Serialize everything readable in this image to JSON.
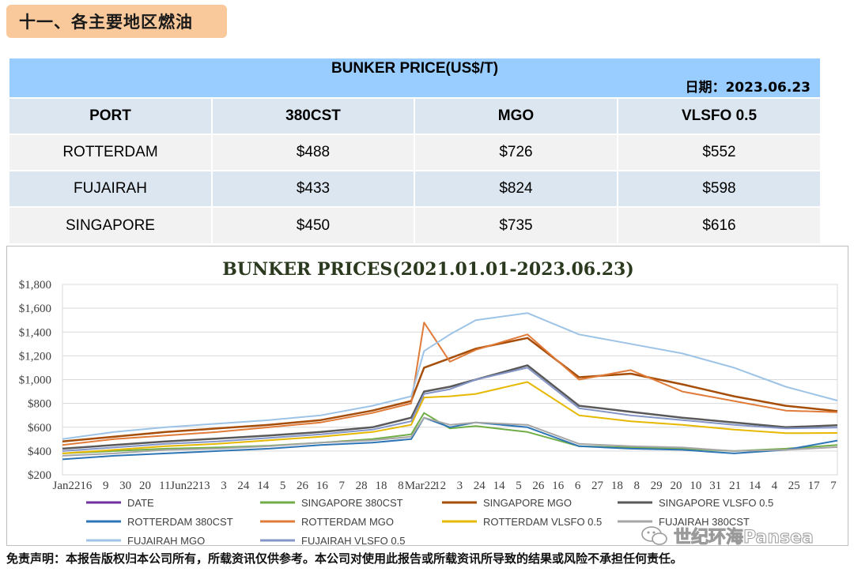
{
  "section_title": "十一、各主要地区燃油",
  "table": {
    "title": "BUNKER PRICE(US$/T)",
    "date": "日期：2023.06.23",
    "headers": [
      "PORT",
      "380CST",
      "MGO",
      "VLSFO 0.5"
    ],
    "rows": [
      [
        "ROTTERDAM",
        "$488",
        "$726",
        "$552"
      ],
      [
        "FUJAIRAH",
        "$433",
        "$824",
        "$598"
      ],
      [
        "SINGAPORE",
        "$450",
        "$735",
        "$616"
      ]
    ]
  },
  "chart_data": {
    "type": "line",
    "title": "BUNKER PRICES(2021.01.01-2023.06.23)",
    "xlabel": "",
    "ylabel": "",
    "ylim": [
      200,
      1800
    ],
    "yticks": [
      "$200",
      "$400",
      "$600",
      "$800",
      "$1,000",
      "$1,200",
      "$1,400",
      "$1,600",
      "$1,800"
    ],
    "xtick_labels": [
      "Jan22",
      "16",
      "9",
      "30",
      "20",
      "11",
      "Jun22",
      "13",
      "3",
      "24",
      "14",
      "5",
      "26",
      "16",
      "7",
      "28",
      "18",
      "8",
      "Mar22",
      "12",
      "3",
      "24",
      "14",
      "5",
      "26",
      "16",
      "6",
      "27",
      "18",
      "8",
      "29",
      "20",
      "10",
      "31",
      "21",
      "14",
      "4",
      "25",
      "17",
      "7"
    ],
    "grid": true,
    "legend_position": "bottom",
    "legend": [
      "DATE",
      "SINGAPORE 380CST",
      "SINGAPORE MGO",
      "SINGAPORE VLSFO 0.5",
      "ROTTERDAM 380CST",
      "ROTTERDAM MGO",
      "ROTTERDAM VLSFO 0.5",
      "FUJAIRAH 380CST",
      "FUJAIRAH MGO",
      "FUJAIRAH VLSFO 0.5"
    ],
    "x_index": [
      0,
      8,
      16,
      24,
      32,
      40,
      48,
      54,
      56,
      60,
      64,
      72,
      80,
      88,
      96,
      104,
      112,
      120
    ],
    "series": [
      {
        "name": "SINGAPORE 380CST",
        "color": "#70ad47",
        "width": 2,
        "values": [
          380,
          400,
          420,
          430,
          445,
          470,
          500,
          540,
          720,
          590,
          610,
          560,
          440,
          430,
          420,
          400,
          420,
          450
        ]
      },
      {
        "name": "SINGAPORE MGO",
        "color": "#a64d08",
        "width": 2.5,
        "values": [
          480,
          520,
          560,
          590,
          620,
          660,
          740,
          820,
          1100,
          1180,
          1260,
          1350,
          1020,
          1050,
          960,
          860,
          780,
          735
        ]
      },
      {
        "name": "SINGAPORE VLSFO 0.5",
        "color": "#595959",
        "width": 2.5,
        "values": [
          420,
          450,
          480,
          505,
          530,
          560,
          600,
          680,
          900,
          940,
          1000,
          1120,
          780,
          730,
          680,
          640,
          600,
          616
        ]
      },
      {
        "name": "ROTTERDAM 380CST",
        "color": "#2e75b6",
        "width": 2,
        "values": [
          330,
          360,
          380,
          400,
          420,
          450,
          470,
          500,
          680,
          600,
          640,
          600,
          440,
          420,
          410,
          380,
          410,
          488
        ]
      },
      {
        "name": "ROTTERDAM MGO",
        "color": "#e07b39",
        "width": 2,
        "values": [
          450,
          500,
          530,
          560,
          600,
          640,
          720,
          800,
          1480,
          1150,
          1250,
          1380,
          1000,
          1080,
          900,
          820,
          740,
          726
        ]
      },
      {
        "name": "ROTTERDAM VLSFO 0.5",
        "color": "#e6b800",
        "width": 2,
        "values": [
          380,
          410,
          440,
          460,
          490,
          520,
          560,
          620,
          850,
          860,
          880,
          980,
          700,
          650,
          620,
          580,
          550,
          552
        ]
      },
      {
        "name": "FUJAIRAH 380CST",
        "color": "#a6a6a6",
        "width": 2,
        "values": [
          360,
          380,
          410,
          420,
          440,
          470,
          490,
          520,
          680,
          620,
          640,
          620,
          460,
          440,
          430,
          400,
          410,
          433
        ]
      },
      {
        "name": "FUJAIRAH MGO",
        "color": "#9dc3e6",
        "width": 2,
        "values": [
          500,
          560,
          600,
          630,
          660,
          700,
          780,
          860,
          1240,
          1380,
          1500,
          1560,
          1380,
          1300,
          1220,
          1100,
          940,
          824
        ]
      },
      {
        "name": "FUJAIRAH VLSFO 0.5",
        "color": "#8496c8",
        "width": 2,
        "values": [
          400,
          430,
          460,
          480,
          510,
          540,
          580,
          650,
          880,
          920,
          1000,
          1100,
          760,
          700,
          660,
          620,
          590,
          598
        ]
      }
    ]
  },
  "legend_colors": {
    "DATE": "#7030a0",
    "SINGAPORE 380CST": "#70ad47",
    "SINGAPORE MGO": "#a64d08",
    "SINGAPORE VLSFO 0.5": "#595959",
    "ROTTERDAM 380CST": "#2e75b6",
    "ROTTERDAM MGO": "#e07b39",
    "ROTTERDAM VLSFO 0.5": "#e6b800",
    "FUJAIRAH 380CST": "#a6a6a6",
    "FUJAIRAH MGO": "#9dc3e6",
    "FUJAIRAH VLSFO 0.5": "#8496c8"
  },
  "disclaimer": "免责声明：本报告版权归本公司所有，所载资讯仅供参考。本公司对使用此报告或所载资讯所导致的结果或风险不承担任何责任。",
  "watermark": "世纪环海Pansea"
}
